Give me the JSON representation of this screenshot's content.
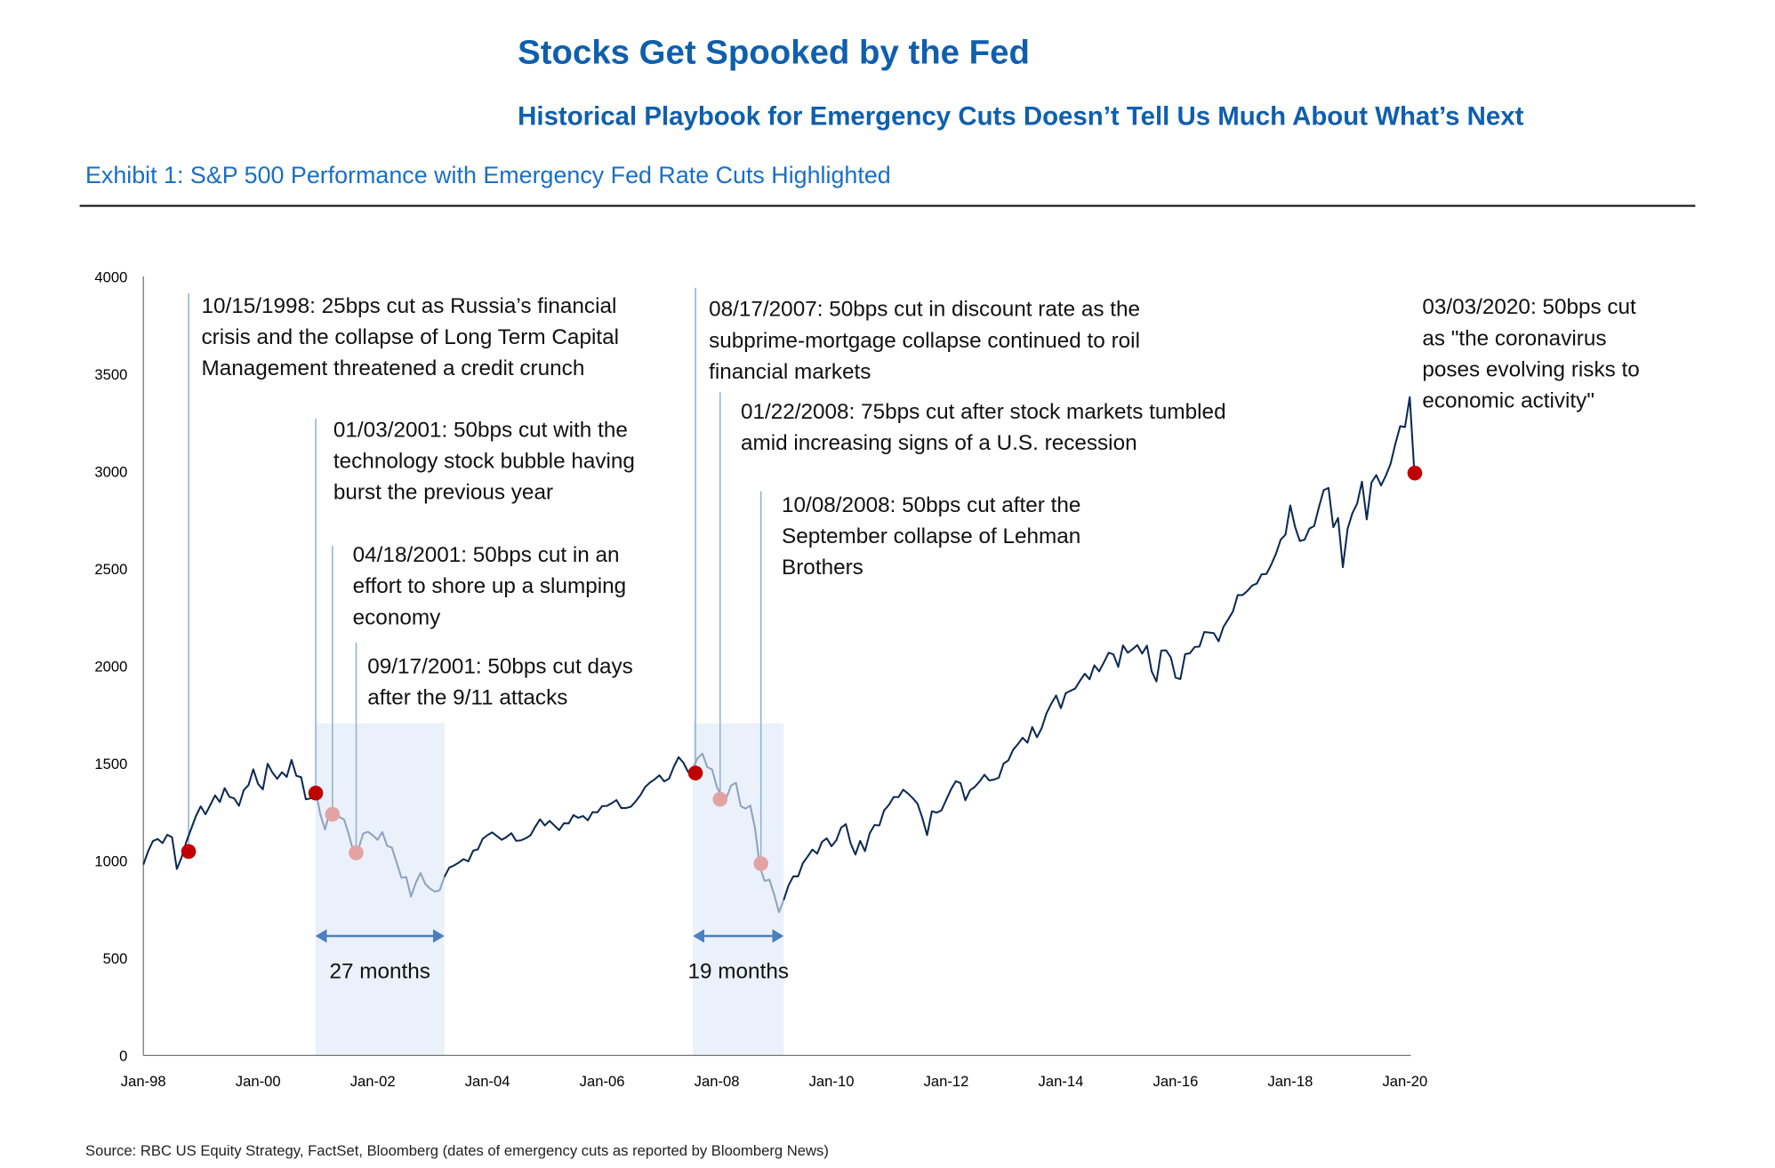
{
  "header": {
    "title": "Stocks Get Spooked by the Fed",
    "subtitle": "Historical Playbook for Emergency Cuts Doesn’t Tell Us Much About What’s Next",
    "exhibit": "Exhibit 1: S&P 500 Performance with Emergency Fed Rate Cuts Highlighted"
  },
  "footer": {
    "source": "Source: RBC US Equity Strategy, FactSet, Bloomberg (dates of emergency cuts as reported by Bloomberg News)"
  },
  "chart_data": {
    "type": "line",
    "title": "Exhibit 1: S&P 500 Performance with Emergency Fed Rate Cuts Highlighted",
    "xlabel": "",
    "ylabel": "",
    "ylim": [
      0,
      4000
    ],
    "yticks": [
      "0",
      "500",
      "1000",
      "1500",
      "2000",
      "2500",
      "3000",
      "3500",
      "4000"
    ],
    "xticks": [
      "Jan-98",
      "Jan-00",
      "Jan-02",
      "Jan-04",
      "Jan-06",
      "Jan-08",
      "Jan-10",
      "Jan-12",
      "Jan-14",
      "Jan-16",
      "Jan-18",
      "Jan-20"
    ],
    "grid": false,
    "legend": "none",
    "colors": {
      "line": "#0d2a52",
      "line_shaded": "#8ea3bd",
      "shade": "#eaf1fa",
      "cut_major": "#c00000",
      "cut_minor": "#e3a3a3",
      "leader": "#8fb0d8",
      "arrow": "#4a7fc0"
    },
    "series_start": "1998-01",
    "series_frequency": "monthly",
    "values": [
      980,
      1049,
      1101,
      1111,
      1090,
      1133,
      1120,
      957,
      1017,
      1098,
      1163,
      1229,
      1279,
      1238,
      1286,
      1335,
      1301,
      1372,
      1328,
      1320,
      1282,
      1362,
      1388,
      1469,
      1394,
      1366,
      1498,
      1452,
      1420,
      1454,
      1430,
      1517,
      1436,
      1429,
      1315,
      1320,
      1366,
      1240,
      1160,
      1249,
      1256,
      1224,
      1211,
      1134,
      1041,
      1060,
      1139,
      1148,
      1130,
      1107,
      1147,
      1076,
      1067,
      990,
      912,
      916,
      815,
      886,
      936,
      880,
      856,
      841,
      848,
      917,
      964,
      975,
      990,
      1008,
      996,
      1051,
      1058,
      1112,
      1131,
      1145,
      1126,
      1107,
      1121,
      1141,
      1102,
      1104,
      1115,
      1130,
      1174,
      1212,
      1181,
      1204,
      1181,
      1157,
      1192,
      1191,
      1234,
      1220,
      1229,
      1207,
      1249,
      1248,
      1280,
      1281,
      1295,
      1311,
      1270,
      1270,
      1277,
      1304,
      1336,
      1378,
      1401,
      1418,
      1438,
      1407,
      1421,
      1482,
      1531,
      1503,
      1455,
      1474,
      1527,
      1549,
      1481,
      1468,
      1379,
      1331,
      1323,
      1386,
      1400,
      1280,
      1267,
      1283,
      1166,
      969,
      896,
      903,
      826,
      735,
      798,
      873,
      919,
      919,
      987,
      1021,
      1057,
      1036,
      1096,
      1115,
      1074,
      1104,
      1169,
      1187,
      1089,
      1031,
      1102,
      1049,
      1141,
      1183,
      1181,
      1258,
      1286,
      1327,
      1326,
      1364,
      1345,
      1321,
      1292,
      1219,
      1131,
      1253,
      1247,
      1258,
      1312,
      1366,
      1408,
      1398,
      1310,
      1362,
      1379,
      1407,
      1441,
      1412,
      1416,
      1426,
      1498,
      1515,
      1569,
      1598,
      1631,
      1606,
      1686,
      1633,
      1682,
      1757,
      1806,
      1848,
      1783,
      1859,
      1872,
      1884,
      1924,
      1960,
      1931,
      2003,
      1972,
      2018,
      2068,
      2059,
      1995,
      2105,
      2068,
      2086,
      2107,
      2063,
      2104,
      1972,
      1920,
      2079,
      2080,
      2044,
      1940,
      1932,
      2060,
      2065,
      2097,
      2099,
      2174,
      2171,
      2168,
      2126,
      2199,
      2239,
      2279,
      2364,
      2363,
      2384,
      2412,
      2423,
      2470,
      2472,
      2519,
      2575,
      2648,
      2674,
      2824,
      2714,
      2641,
      2648,
      2705,
      2718,
      2816,
      2902,
      2914,
      2712,
      2760,
      2507,
      2704,
      2784,
      2834,
      2946,
      2752,
      2942,
      2980,
      2926,
      2977,
      3038,
      3141,
      3231,
      3226,
      3380,
      2980
    ],
    "shaded_periods": [
      {
        "start": "2001-01",
        "end": "2003-04",
        "label": "27 months"
      },
      {
        "start": "2007-08",
        "end": "2009-03",
        "label": "19 months"
      }
    ],
    "cuts": [
      {
        "date": "1998-10-15",
        "value": 1047,
        "major": true,
        "lines": [
          "10/15/1998: 25bps cut as Russia’s financial",
          "crisis and the collapse of Long Term Capital",
          "Management threatened a credit crunch"
        ]
      },
      {
        "date": "2001-01-03",
        "value": 1347,
        "major": true,
        "lines": [
          "01/03/2001: 50bps cut with the",
          "technology stock bubble having",
          "burst the previous year"
        ]
      },
      {
        "date": "2001-04-18",
        "value": 1238,
        "major": false,
        "lines": [
          "04/18/2001: 50bps cut in an",
          "effort to shore up a slumping",
          "economy"
        ]
      },
      {
        "date": "2001-09-17",
        "value": 1040,
        "major": false,
        "lines": [
          "09/17/2001: 50bps cut days",
          "after the 9/11 attacks"
        ]
      },
      {
        "date": "2007-08-17",
        "value": 1450,
        "major": true,
        "lines": [
          "08/17/2007: 50bps cut in discount rate as the",
          "subprime-mortgage collapse continued to roil",
          "financial markets"
        ]
      },
      {
        "date": "2008-01-22",
        "value": 1315,
        "major": false,
        "lines": [
          "01/22/2008: 75bps cut after stock markets tumbled",
          "amid increasing signs of a U.S. recession"
        ]
      },
      {
        "date": "2008-10-08",
        "value": 985,
        "major": false,
        "lines": [
          "10/08/2008: 50bps cut after the",
          "September collapse of Lehman",
          "Brothers"
        ]
      },
      {
        "date": "2020-03-03",
        "value": 2990,
        "major": true,
        "lines": [
          "03/03/2020: 50bps cut",
          "as \"the coronavirus",
          "poses evolving risks to",
          "economic activity\""
        ]
      }
    ]
  }
}
